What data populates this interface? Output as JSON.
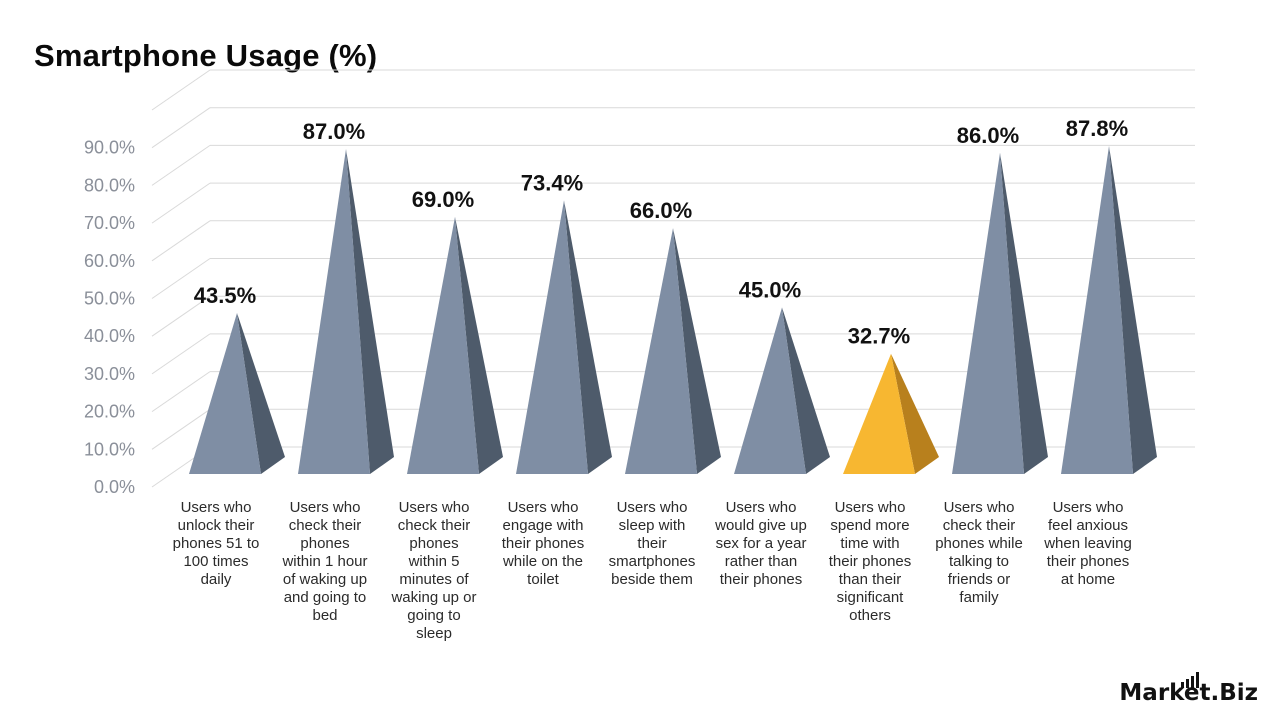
{
  "chart_data": {
    "type": "bar",
    "shape": "pyramid",
    "title": "Smartphone Usage (%)",
    "xlabel": "",
    "ylabel": "",
    "ylim": [
      0,
      90
    ],
    "yticks": [
      "0.0%",
      "10.0%",
      "20.0%",
      "30.0%",
      "40.0%",
      "50.0%",
      "60.0%",
      "70.0%",
      "80.0%",
      "90.0%"
    ],
    "grid": true,
    "categories": [
      [
        "Users who",
        "unlock their",
        "phones 51 to",
        "100 times",
        "daily"
      ],
      [
        "Users who",
        "check their",
        "phones",
        "within 1 hour",
        "of waking up",
        "and going to",
        "bed"
      ],
      [
        "Users who",
        "check their",
        "phones",
        "within 5",
        "minutes of",
        "waking up or",
        "going to",
        "sleep"
      ],
      [
        "Users who",
        "engage with",
        "their phones",
        "while on the",
        "toilet"
      ],
      [
        "Users who",
        "sleep with",
        "their",
        "smartphones",
        "beside them"
      ],
      [
        "Users who",
        "would give up",
        "sex for a year",
        "rather than",
        "their phones"
      ],
      [
        "Users who",
        "spend more",
        "time with",
        "their phones",
        "than their",
        "significant",
        "others"
      ],
      [
        "Users who",
        "check their",
        "phones while",
        "talking to",
        "friends or",
        "family"
      ],
      [
        "Users who",
        "feel anxious",
        "when leaving",
        "their phones",
        "at home"
      ]
    ],
    "values": [
      43.5,
      87.0,
      69.0,
      73.4,
      66.0,
      45.0,
      32.7,
      86.0,
      87.8
    ],
    "value_labels": [
      "43.5%",
      "87.0%",
      "69.0%",
      "73.4%",
      "66.0%",
      "45.0%",
      "32.7%",
      "86.0%",
      "87.8%"
    ],
    "colors": {
      "default_front": "#7f8ea4",
      "default_side": "#4e5b6b",
      "highlight_front": "#f7b731",
      "highlight_side": "#b8801d",
      "grid": "#d9d9d9"
    },
    "highlight_index": 6
  },
  "logo": {
    "text_a": "Market",
    "text_b": ".Biz"
  }
}
